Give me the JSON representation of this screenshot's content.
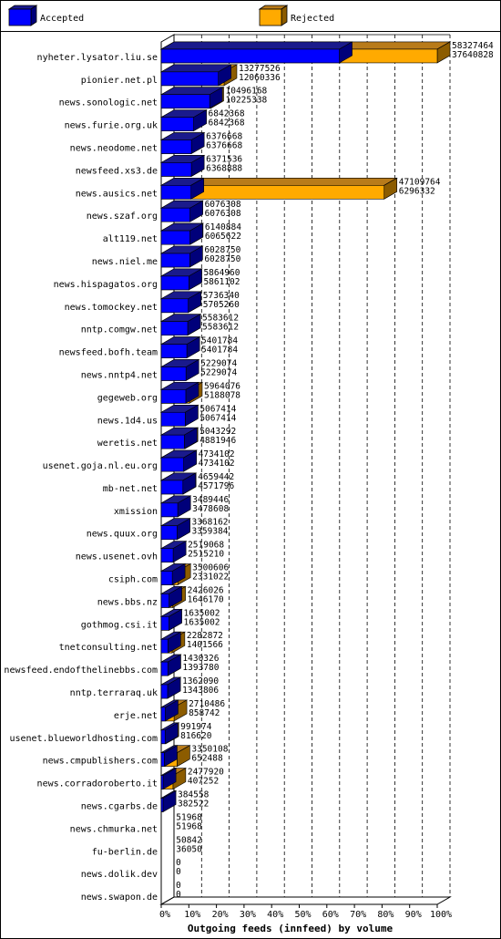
{
  "colors": {
    "accepted": "#0000ff",
    "accepted_top": "#1a1a8c",
    "accepted_side": "#00007a",
    "rejected": "#ffaa00",
    "rejected_top": "#b87b1a",
    "rejected_side": "#8c5c00",
    "border": "#000000",
    "background": "#ffffff"
  },
  "chart_data": {
    "type": "bar",
    "orientation": "horizontal",
    "stacked": false,
    "three_d": true,
    "xlabel": "Outgoing feeds (innfeed) by volume",
    "ylabel": "",
    "xlim": [
      0,
      100
    ],
    "x_ticks": [
      "0%",
      "10%",
      "20%",
      "30%",
      "40%",
      "50%",
      "60%",
      "70%",
      "80%",
      "90%",
      "100%"
    ],
    "grid": "vertical-dashed",
    "legend_position": "top",
    "legend": [
      {
        "key": "accepted",
        "label": "Accepted"
      },
      {
        "key": "rejected",
        "label": "Rejected"
      }
    ],
    "categories": [
      "nyheter.lysator.liu.se",
      "pionier.net.pl",
      "news.sonologic.net",
      "news.furie.org.uk",
      "news.neodome.net",
      "newsfeed.xs3.de",
      "news.ausics.net",
      "news.szaf.org",
      "alt119.net",
      "news.niel.me",
      "news.hispagatos.org",
      "news.tomockey.net",
      "nntp.comgw.net",
      "newsfeed.bofh.team",
      "news.nntp4.net",
      "gegeweb.org",
      "news.1d4.us",
      "weretis.net",
      "usenet.goja.nl.eu.org",
      "mb-net.net",
      "xmission",
      "news.quux.org",
      "news.usenet.ovh",
      "csiph.com",
      "news.bbs.nz",
      "gothmog.csi.it",
      "tnetconsulting.net",
      "newsfeed.endofthelinebbs.com",
      "nntp.terraraq.uk",
      "erje.net",
      "usenet.blueworldhosting.com",
      "news.cmpublishers.com",
      "news.corradoroberto.it",
      "news.cgarbs.de",
      "news.chmurka.net",
      "fu-berlin.de",
      "news.dolik.dev",
      "news.swapon.de"
    ],
    "series": [
      {
        "name": "Accepted",
        "values": [
          37640828,
          12060336,
          10225338,
          6842368,
          6376668,
          6368888,
          6296332,
          6076308,
          6065622,
          6028750,
          5861102,
          5705260,
          5583612,
          5401784,
          5229074,
          5188078,
          5067414,
          4881946,
          4734102,
          4571796,
          3478608,
          3359384,
          2515210,
          2331022,
          1646170,
          1635002,
          1401566,
          1393780,
          1343806,
          858742,
          816620,
          652488,
          407252,
          382522,
          51968,
          36050,
          0,
          0
        ]
      },
      {
        "name": "Rejected",
        "values": [
          58327464,
          13277526,
          10496168,
          6842368,
          6376668,
          6371536,
          47109764,
          6076308,
          6140884,
          6028750,
          5864960,
          5736340,
          5583612,
          5401784,
          5229074,
          5964076,
          5067414,
          5043292,
          4734102,
          4659442,
          3489446,
          3368162,
          2519068,
          3500606,
          2426026,
          1635002,
          2282872,
          1430326,
          1362090,
          2710486,
          991974,
          3350108,
          2477920,
          384558,
          51968,
          50842,
          0,
          0
        ]
      }
    ],
    "value_labels": [
      [
        "58327464",
        "37640828"
      ],
      [
        "13277526",
        "12060336"
      ],
      [
        "10496168",
        "10225338"
      ],
      [
        "6842368",
        "6842368"
      ],
      [
        "6376668",
        "6376668"
      ],
      [
        "6371536",
        "6368888"
      ],
      [
        "47109764",
        "6296332"
      ],
      [
        "6076308",
        "6076308"
      ],
      [
        "6140884",
        "6065622"
      ],
      [
        "6028750",
        "6028750"
      ],
      [
        "5864960",
        "5861102"
      ],
      [
        "5736340",
        "5705260"
      ],
      [
        "5583612",
        "5583612"
      ],
      [
        "5401784",
        "5401784"
      ],
      [
        "5229074",
        "5229074"
      ],
      [
        "5964076",
        "5188078"
      ],
      [
        "5067414",
        "5067414"
      ],
      [
        "5043292",
        "4881946"
      ],
      [
        "4734102",
        "4734102"
      ],
      [
        "4659442",
        "4571796"
      ],
      [
        "3489446",
        "3478608"
      ],
      [
        "3368162",
        "3359384"
      ],
      [
        "2519068",
        "2515210"
      ],
      [
        "3500606",
        "2331022"
      ],
      [
        "2426026",
        "1646170"
      ],
      [
        "1635002",
        "1635002"
      ],
      [
        "2282872",
        "1401566"
      ],
      [
        "1430326",
        "1393780"
      ],
      [
        "1362090",
        "1343806"
      ],
      [
        "2710486",
        "858742"
      ],
      [
        "991974",
        "816620"
      ],
      [
        "3350108",
        "652488"
      ],
      [
        "2477920",
        "407252"
      ],
      [
        "384558",
        "382522"
      ],
      [
        "51968",
        "51968"
      ],
      [
        "50842",
        "36050"
      ],
      [
        "0",
        "0"
      ],
      [
        "0",
        "0"
      ]
    ]
  }
}
